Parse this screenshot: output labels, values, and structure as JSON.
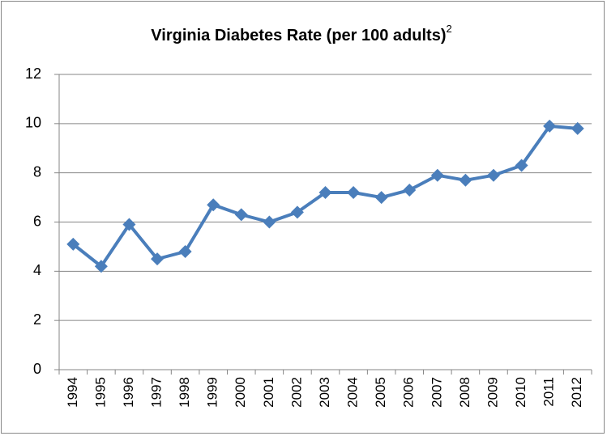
{
  "chart_data": {
    "type": "line",
    "title": "Virginia Diabetes Rate (per 100 adults)",
    "title_superscript": "2",
    "categories": [
      "1994",
      "1995",
      "1996",
      "1997",
      "1998",
      "1999",
      "2000",
      "2001",
      "2002",
      "2003",
      "2004",
      "2005",
      "2006",
      "2007",
      "2008",
      "2009",
      "2010",
      "2011",
      "2012"
    ],
    "series": [
      {
        "name": "Virginia Diabetes Rate",
        "color": "#4a7ebb",
        "values": [
          5.1,
          4.2,
          5.9,
          4.5,
          4.8,
          6.7,
          6.3,
          6.0,
          6.4,
          7.2,
          7.2,
          7.0,
          7.3,
          7.9,
          7.7,
          7.9,
          8.3,
          9.9,
          9.8
        ]
      }
    ],
    "ylim": [
      0,
      12
    ],
    "yticks": [
      0,
      2,
      4,
      6,
      8,
      10,
      12
    ],
    "grid": true,
    "legend": false
  }
}
